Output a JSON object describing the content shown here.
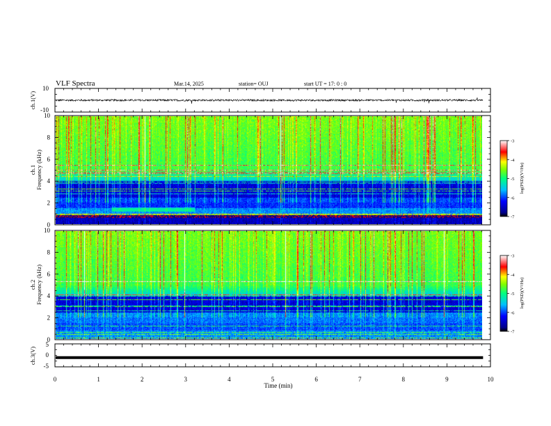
{
  "header": {
    "title": "VLF Spectra",
    "date": "Mar.14, 2025",
    "station": "station= OUJ",
    "start": "start  UT =   17: 0  : 0"
  },
  "chart_data": [
    {
      "type": "line",
      "id": "ch1-waveform",
      "ylabel": "ch.1(V)",
      "ylim": [
        -10,
        10
      ],
      "yticks": [
        "10",
        "-10"
      ],
      "description_values": "noise trace around 0 V with small spikes",
      "series": [
        {
          "values": [
            0.2,
            -0.3,
            0.4,
            -0.2,
            0.3,
            -0.4,
            0.1,
            0.5,
            -0.3,
            0.2
          ]
        }
      ]
    },
    {
      "type": "heatmap",
      "id": "ch1-spectrogram",
      "ylabel_line1": "ch.1",
      "ylabel_line2": "Frequency (kHz)",
      "ylim": [
        0,
        10
      ],
      "yticks": [
        "0",
        "2",
        "4",
        "6",
        "8",
        "10"
      ],
      "colorbar": {
        "label": "log(PSD)(V²/Hz)",
        "ticks": [
          "-3",
          "-4",
          "-5",
          "-6",
          "-7"
        ],
        "range": [
          -7,
          -3
        ]
      }
    },
    {
      "type": "heatmap",
      "id": "ch2-spectrogram",
      "ylabel_line1": "ch.2",
      "ylabel_line2": "Frequency (kHz)",
      "ylim": [
        0,
        10
      ],
      "yticks": [
        "0",
        "2",
        "4",
        "6",
        "8",
        "10"
      ],
      "colorbar": {
        "label": "log(PSD)(V²/Hz)",
        "ticks": [
          "-3",
          "-4",
          "-5",
          "-6",
          "-7"
        ],
        "range": [
          -7,
          -3
        ]
      }
    },
    {
      "type": "line",
      "id": "ch3-waveform",
      "ylabel": "ch.3(V)",
      "ylim": [
        -5,
        5
      ],
      "yticks": [
        "5",
        "0",
        "-5"
      ],
      "series": [
        {
          "values": [
            -1.0,
            -1.0,
            -1.0,
            -1.0,
            -1.0,
            -1.0,
            -1.0,
            -1.0,
            -1.0,
            -1.0
          ]
        }
      ]
    }
  ],
  "xaxis": {
    "label": "Time (min)",
    "ticks": [
      "0",
      "1",
      "2",
      "3",
      "4",
      "5",
      "6",
      "7",
      "8",
      "9",
      "10"
    ],
    "xlim": [
      0,
      10
    ],
    "data_end": 9.83
  },
  "colormap": [
    "#00008b",
    "#0000ff",
    "#0080ff",
    "#00ffff",
    "#00ff80",
    "#80ff00",
    "#ffff00",
    "#ff8000",
    "#ff0000",
    "#ffffff"
  ]
}
